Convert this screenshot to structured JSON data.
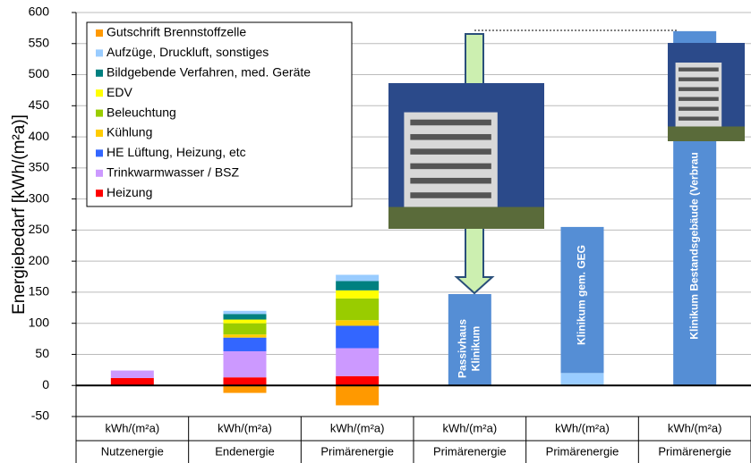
{
  "chart_data": {
    "type": "stacked_bar",
    "y_label": "Energiebedarf [kWh/(m²a)]",
    "categories": [
      "Nutzenergie",
      "Endenergie",
      "Primärenergie",
      "Primärenergie",
      "Primärenergie",
      "Primärenergie"
    ],
    "category_units": [
      "kWh/(m²a)",
      "kWh/(m²a)",
      "kWh/(m²a)",
      "kWh/(m²a)",
      "kWh/(m²a)",
      "kWh/(m²a)"
    ],
    "ylim": [
      -50,
      600
    ],
    "yticks": [
      -50,
      0,
      50,
      100,
      150,
      200,
      250,
      300,
      350,
      400,
      450,
      500,
      550,
      600
    ],
    "grid": true,
    "series": [
      {
        "name": "Heizung",
        "color": "#ff0000",
        "values": [
          12,
          13,
          15,
          null,
          null,
          null
        ]
      },
      {
        "name": "Trinkwarmwasser / BSZ",
        "color": "#cc99ff",
        "values": [
          12,
          42,
          45,
          null,
          null,
          null
        ]
      },
      {
        "name": "HE Lüftung, Heizung, etc",
        "color": "#3366ff",
        "values": [
          null,
          22,
          36,
          null,
          null,
          null
        ]
      },
      {
        "name": "Kühlung",
        "color": "#ffcc00",
        "values": [
          null,
          5,
          9,
          null,
          null,
          null
        ]
      },
      {
        "name": "Beleuchtung",
        "color": "#99cc00",
        "values": [
          null,
          18,
          35,
          null,
          null,
          null
        ]
      },
      {
        "name": "EDV",
        "color": "#ffff00",
        "values": [
          null,
          6,
          13,
          null,
          null,
          null
        ]
      },
      {
        "name": "Bildgebende Verfahren, med. Geräte",
        "color": "#008080",
        "values": [
          null,
          9,
          15,
          null,
          null,
          null
        ]
      },
      {
        "name": "Aufzüge, Druckluft, sonstiges",
        "color": "#99ccff",
        "values": [
          null,
          5,
          10,
          null,
          20,
          null
        ]
      },
      {
        "name": "Gutschrift Brennstoffzelle",
        "color": "#ff9900",
        "values": [
          null,
          -12,
          -32,
          null,
          null,
          null
        ]
      },
      {
        "color": "#558ed5",
        "values": [
          null,
          null,
          null,
          147,
          235,
          570
        ]
      }
    ],
    "bar_labels": [
      null,
      null,
      null,
      [
        "Passivhaus",
        "Klinikum"
      ],
      [
        "Klinikum gem. GEG"
      ],
      [
        "Klinikum Bestandsgebäude (Verbrau"
      ]
    ]
  }
}
